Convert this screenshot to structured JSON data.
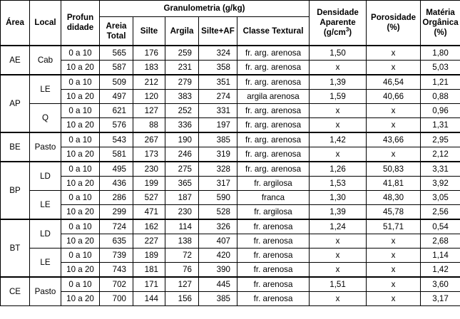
{
  "headers": {
    "area": "Área",
    "local": "Local",
    "profundidade_line1": "Profun",
    "profundidade_line2": "didade",
    "granulometria": "Granulometria (g/kg)",
    "areia_total_line1": "Areia",
    "areia_total_line2": "Total",
    "silte": "Silte",
    "argila": "Argila",
    "silte_af": "Silte+AF",
    "classe_textural": "Classe Textural",
    "densidade_line1": "Densidade",
    "densidade_line2": "Aparente",
    "densidade_unit_pre": "(g/cm",
    "densidade_unit_sup": "3",
    "densidade_unit_post": ")",
    "porosidade_line1": "Porosidade",
    "porosidade_line2": "(%)",
    "materia_line1": "Matéria",
    "materia_line2": "Orgânica",
    "materia_line3": "(%)"
  },
  "groups": [
    {
      "area": "AE",
      "locals": [
        {
          "local": "Cab",
          "rows": [
            {
              "depth": "0 a 10",
              "areia": "565",
              "silte": "176",
              "argila": "259",
              "silte_af": "324",
              "classe": "fr. arg. arenosa",
              "densidade": "1,50",
              "porosidade": "x",
              "materia": "1,80"
            },
            {
              "depth": "10 a 20",
              "areia": "587",
              "silte": "183",
              "argila": "231",
              "silte_af": "358",
              "classe": "fr. arg. arenosa",
              "densidade": "x",
              "porosidade": "x",
              "materia": "5,03"
            }
          ]
        }
      ]
    },
    {
      "area": "AP",
      "locals": [
        {
          "local": "LE",
          "rows": [
            {
              "depth": "0 a 10",
              "areia": "509",
              "silte": "212",
              "argila": "279",
              "silte_af": "351",
              "classe": "fr. arg. arenosa",
              "densidade": "1,39",
              "porosidade": "46,54",
              "materia": "1,21"
            },
            {
              "depth": "10 a 20",
              "areia": "497",
              "silte": "120",
              "argila": "383",
              "silte_af": "274",
              "classe": "argila arenosa",
              "densidade": "1,59",
              "porosidade": "40,66",
              "materia": "0,88"
            }
          ]
        },
        {
          "local": "Q",
          "rows": [
            {
              "depth": "0 a 10",
              "areia": "621",
              "silte": "127",
              "argila": "252",
              "silte_af": "331",
              "classe": "fr. arg. arenosa",
              "densidade": "x",
              "porosidade": "x",
              "materia": "0,96"
            },
            {
              "depth": "10 a 20",
              "areia": "576",
              "silte": "88",
              "argila": "336",
              "silte_af": "197",
              "classe": "fr. arg. arenosa",
              "densidade": "x",
              "porosidade": "x",
              "materia": "1,31"
            }
          ]
        }
      ]
    },
    {
      "area": "BE",
      "locals": [
        {
          "local": "Pasto",
          "rows": [
            {
              "depth": "0 a 10",
              "areia": "543",
              "silte": "267",
              "argila": "190",
              "silte_af": "385",
              "classe": "fr. arg. arenosa",
              "densidade": "1,42",
              "porosidade": "43,66",
              "materia": "2,95"
            },
            {
              "depth": "10 a 20",
              "areia": "581",
              "silte": "173",
              "argila": "246",
              "silte_af": "319",
              "classe": "fr. arg. arenosa",
              "densidade": "x",
              "porosidade": "x",
              "materia": "2,12"
            }
          ]
        }
      ]
    },
    {
      "area": "BP",
      "locals": [
        {
          "local": "LD",
          "rows": [
            {
              "depth": "0 a 10",
              "areia": "495",
              "silte": "230",
              "argila": "275",
              "silte_af": "328",
              "classe": "fr. arg. arenosa",
              "densidade": "1,26",
              "porosidade": "50,83",
              "materia": "3,31"
            },
            {
              "depth": "10 a 20",
              "areia": "436",
              "silte": "199",
              "argila": "365",
              "silte_af": "317",
              "classe": "fr. argilosa",
              "densidade": "1,53",
              "porosidade": "41,81",
              "materia": "3,92"
            }
          ]
        },
        {
          "local": "LE",
          "rows": [
            {
              "depth": "0 a 10",
              "areia": "286",
              "silte": "527",
              "argila": "187",
              "silte_af": "590",
              "classe": "franca",
              "densidade": "1,30",
              "porosidade": "48,30",
              "materia": "3,05"
            },
            {
              "depth": "10 a 20",
              "areia": "299",
              "silte": "471",
              "argila": "230",
              "silte_af": "528",
              "classe": "fr. argilosa",
              "densidade": "1,39",
              "porosidade": "45,78",
              "materia": "2,56"
            }
          ]
        }
      ]
    },
    {
      "area": "BT",
      "locals": [
        {
          "local": "LD",
          "rows": [
            {
              "depth": "0 a 10",
              "areia": "724",
              "silte": "162",
              "argila": "114",
              "silte_af": "326",
              "classe": "fr. arenosa",
              "densidade": "1,24",
              "porosidade": "51,71",
              "materia": "0,54"
            },
            {
              "depth": "10 a 20",
              "areia": "635",
              "silte": "227",
              "argila": "138",
              "silte_af": "407",
              "classe": "fr. arenosa",
              "densidade": "x",
              "porosidade": "x",
              "materia": "2,68"
            }
          ]
        },
        {
          "local": "LE",
          "rows": [
            {
              "depth": "0 a 10",
              "areia": "739",
              "silte": "189",
              "argila": "72",
              "silte_af": "420",
              "classe": "fr. arenosa",
              "densidade": "x",
              "porosidade": "x",
              "materia": "1,14"
            },
            {
              "depth": "10 a 20",
              "areia": "743",
              "silte": "181",
              "argila": "76",
              "silte_af": "390",
              "classe": "fr. arenosa",
              "densidade": "x",
              "porosidade": "x",
              "materia": "1,42"
            }
          ]
        }
      ]
    },
    {
      "area": "CE",
      "locals": [
        {
          "local": "Pasto",
          "rows": [
            {
              "depth": "0 a 10",
              "areia": "702",
              "silte": "171",
              "argila": "127",
              "silte_af": "445",
              "classe": "fr. arenosa",
              "densidade": "1,51",
              "porosidade": "x",
              "materia": "3,60"
            },
            {
              "depth": "10 a 20",
              "areia": "700",
              "silte": "144",
              "argila": "156",
              "silte_af": "385",
              "classe": "fr. arenosa",
              "densidade": "x",
              "porosidade": "x",
              "materia": "3,17"
            }
          ]
        }
      ]
    }
  ]
}
